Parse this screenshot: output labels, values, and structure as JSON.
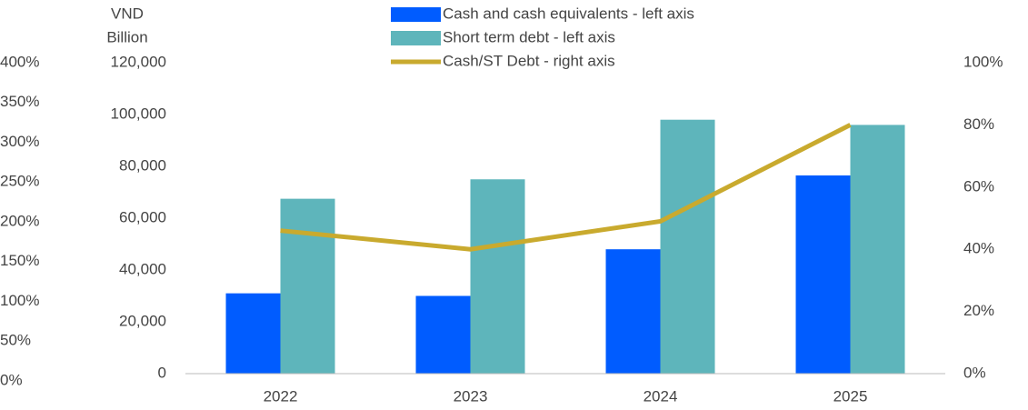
{
  "chart_data": {
    "type": "bar_line",
    "ylabel_lines": [
      "VND",
      "Billion"
    ],
    "categories": [
      "2022",
      "2023",
      "2024",
      "2025"
    ],
    "series": [
      {
        "name": "Cash and cash equivalents - left axis",
        "color": "#005cff",
        "kind": "bar",
        "values": [
          31000,
          30000,
          48000,
          76500
        ]
      },
      {
        "name": "Short term debt - left axis",
        "color": "#5eb5bb",
        "kind": "bar",
        "values": [
          67500,
          75000,
          98000,
          96000
        ]
      },
      {
        "name": "Cash/ST Debt - right axis",
        "color": "#c9aa2e",
        "kind": "line",
        "axis": "y2",
        "values": [
          46,
          40,
          49,
          80
        ]
      }
    ],
    "ylim": [
      0,
      120000
    ],
    "yticks": [
      0,
      {
        "value": 20000,
        "label": "20,000"
      },
      {
        "value": 40000,
        "label": "40,000"
      },
      {
        "value": 60000,
        "label": "60,000"
      },
      {
        "value": 80000,
        "label": "80,000"
      },
      {
        "value": 100000,
        "label": "100,000"
      },
      {
        "value": 120000,
        "label": "120,000"
      }
    ],
    "y2lim": [
      0,
      100
    ],
    "y2ticks": [
      {
        "value": 0,
        "label": "0%"
      },
      {
        "value": 20,
        "label": "20%"
      },
      {
        "value": 40,
        "label": "40%"
      },
      {
        "value": 60,
        "label": "60%"
      },
      {
        "value": 80,
        "label": "80%"
      },
      {
        "value": 100,
        "label": "100%"
      }
    ],
    "y3lim": [
      0,
      400
    ],
    "y3ticks": [
      {
        "value": 0,
        "label": "0%"
      },
      {
        "value": 50,
        "label": "50%"
      },
      {
        "value": 100,
        "label": "100%"
      },
      {
        "value": 150,
        "label": "150%"
      },
      {
        "value": 200,
        "label": "200%"
      },
      {
        "value": 250,
        "label": "250%"
      },
      {
        "value": 300,
        "label": "300%"
      },
      {
        "value": 350,
        "label": "350%"
      },
      {
        "value": 400,
        "label": "400%"
      }
    ],
    "legend": "top"
  }
}
